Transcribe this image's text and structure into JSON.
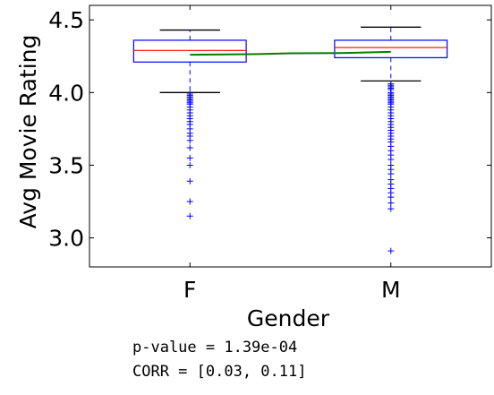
{
  "chart_data": {
    "type": "box",
    "title": "",
    "xlabel": "Gender",
    "ylabel": "Avg Movie Rating",
    "ylim": [
      2.8,
      4.6
    ],
    "yticks": [
      "3.0",
      "3.5",
      "4.0",
      "4.5"
    ],
    "categories": [
      "F",
      "M"
    ],
    "boxes": [
      {
        "name": "F",
        "whisker_low": 4.0,
        "q1": 4.21,
        "median": 4.29,
        "q3": 4.36,
        "whisker_high": 4.43,
        "outliers": [
          3.99,
          3.98,
          3.97,
          3.96,
          3.95,
          3.94,
          3.93,
          3.92,
          3.9,
          3.88,
          3.86,
          3.84,
          3.82,
          3.8,
          3.78,
          3.75,
          3.72,
          3.7,
          3.67,
          3.62,
          3.55,
          3.5,
          3.39,
          3.25,
          3.15
        ]
      },
      {
        "name": "M",
        "whisker_low": 4.08,
        "q1": 4.24,
        "median": 4.31,
        "q3": 4.36,
        "whisker_high": 4.45,
        "outliers": [
          4.06,
          4.05,
          4.04,
          4.03,
          4.02,
          4.0,
          3.99,
          3.98,
          3.97,
          3.96,
          3.95,
          3.94,
          3.93,
          3.92,
          3.9,
          3.88,
          3.86,
          3.84,
          3.82,
          3.8,
          3.78,
          3.76,
          3.74,
          3.72,
          3.7,
          3.68,
          3.66,
          3.63,
          3.6,
          3.57,
          3.54,
          3.5,
          3.47,
          3.44,
          3.4,
          3.37,
          3.34,
          3.31,
          3.28,
          3.24,
          3.2,
          2.91
        ]
      }
    ],
    "trend_line": {
      "x": [
        1,
        1.34,
        1.5,
        1.75,
        2
      ],
      "y": [
        4.26,
        4.265,
        4.27,
        4.272,
        4.28
      ]
    },
    "colors": {
      "box": "#0000ff",
      "median": "#ff0000",
      "whisker_cap": "#000000",
      "outlier": "#0000ff",
      "trend": "#008000"
    }
  },
  "stats": {
    "pvalue_text": "p-value = 1.39e-04",
    "corr_text": "CORR = [0.03, 0.11]"
  }
}
